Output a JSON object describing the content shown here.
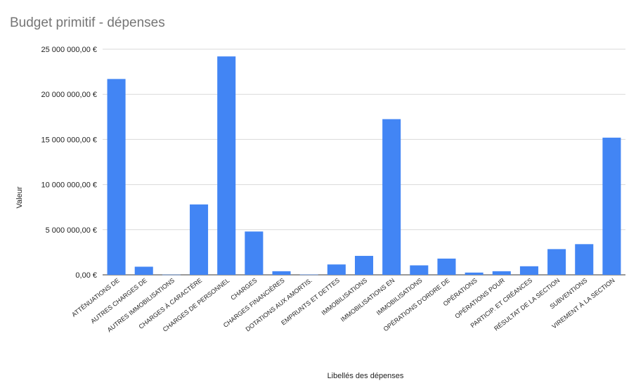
{
  "chart_data": {
    "type": "bar",
    "title": "Budget primitif - dépenses",
    "xlabel": "Libellés des dépenses",
    "ylabel": "Valeur",
    "ylim": [
      0,
      25000000
    ],
    "yticks": [
      {
        "value": 0,
        "label": "0,00 €"
      },
      {
        "value": 5000000,
        "label": "5 000 000,00 €"
      },
      {
        "value": 10000000,
        "label": "10 000 000,00 €"
      },
      {
        "value": 15000000,
        "label": "15 000 000,00 €"
      },
      {
        "value": 20000000,
        "label": "20 000 000,00 €"
      },
      {
        "value": 25000000,
        "label": "25 000 000,00 €"
      }
    ],
    "grid": true,
    "legend": "none",
    "bar_color": "#4285f4",
    "categories": [
      "ATTÉNUATIONS DE",
      "AUTRES CHARGES DE",
      "AUTRES IMMOBILISATIONS",
      "CHARGES À CARACTÈRE",
      "CHARGES DE PERSONNEL",
      "CHARGES",
      "CHARGES FINANCIÈRES",
      "DOTATIONS AUX AMORTIS.",
      "EMPRUNTS ET DETTES",
      "IMMOBILISATIONS",
      "IMMOBILISATIONS EN",
      "IMMOBILISATIONS",
      "OPÉRATIONS D'ORDRE DE",
      "OPÉRATIONS",
      "OPÉRATIONS POUR",
      "PARTICIP. ET CRÉANCES",
      "RÉSULTAT DE LA SECTION",
      "SUBVENTIONS",
      "VIREMENT À LA SECTION"
    ],
    "values": [
      21700000,
      900000,
      20000,
      7800000,
      24200000,
      4800000,
      400000,
      30000,
      1150000,
      2100000,
      17250000,
      1050000,
      1800000,
      250000,
      400000,
      950000,
      2850000,
      3400000,
      15200000
    ]
  }
}
